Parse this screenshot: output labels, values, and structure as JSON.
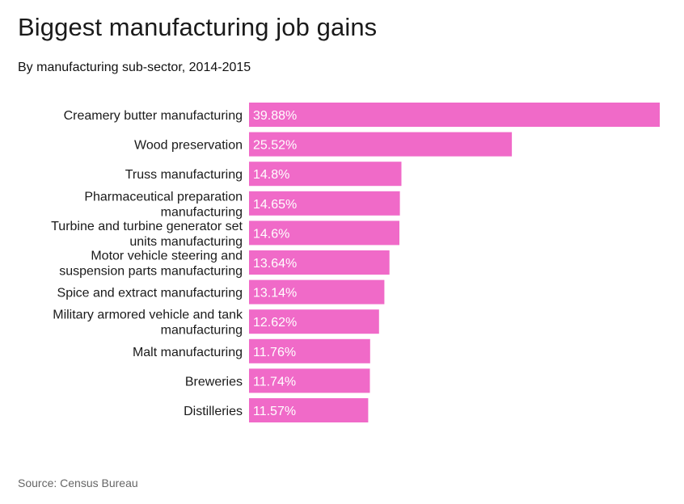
{
  "chart_data": {
    "type": "bar",
    "orientation": "horizontal",
    "title": "Biggest manufacturing job gains",
    "subtitle": "By manufacturing sub-sector, 2014-2015",
    "source": "Source: Census Bureau",
    "categories": [
      "Creamery butter manufacturing",
      "Wood preservation",
      "Truss manufacturing",
      "Pharmaceutical preparation manufacturing",
      "Turbine and turbine generator set units manufacturing",
      "Motor vehicle steering and suspension parts manufacturing",
      "Spice and extract manufacturing",
      "Military armored vehicle and tank manufacturing",
      "Malt manufacturing",
      "Breweries",
      "Distilleries"
    ],
    "category_lines": [
      [
        "Creamery butter manufacturing"
      ],
      [
        "Wood preservation"
      ],
      [
        "Truss manufacturing"
      ],
      [
        "Pharmaceutical preparation",
        "manufacturing"
      ],
      [
        "Turbine and turbine generator set",
        "units manufacturing"
      ],
      [
        "Motor vehicle steering and",
        "suspension parts manufacturing"
      ],
      [
        "Spice and extract manufacturing"
      ],
      [
        "Military armored vehicle and tank",
        "manufacturing"
      ],
      [
        "Malt manufacturing"
      ],
      [
        "Breweries"
      ],
      [
        "Distilleries"
      ]
    ],
    "values": [
      39.88,
      25.52,
      14.8,
      14.65,
      14.6,
      13.64,
      13.14,
      12.62,
      11.76,
      11.74,
      11.57
    ],
    "value_labels": [
      "39.88%",
      "25.52%",
      "14.8%",
      "14.65%",
      "14.6%",
      "13.64%",
      "13.14%",
      "12.62%",
      "11.76%",
      "11.74%",
      "11.57%"
    ],
    "xlim": [
      0,
      39.88
    ],
    "grid": false,
    "bar_color": "#f06ac8",
    "label_color": "#ffffff"
  }
}
